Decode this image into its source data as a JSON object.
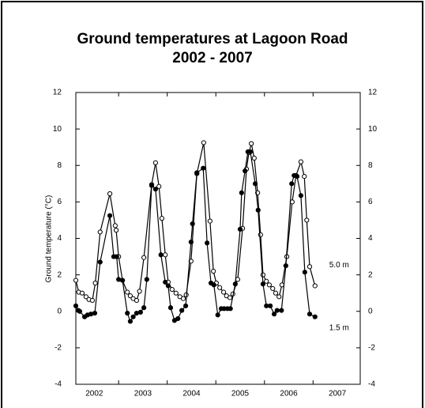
{
  "chart_data": {
    "type": "line",
    "title": [
      "Ground temperatures at Lagoon Road",
      "2002 - 2007"
    ],
    "y_label": "Ground temperature (°C)",
    "xlim": [
      2002.12,
      2007.97
    ],
    "xticks": [
      {
        "value": 2002.5,
        "label": "2002"
      },
      {
        "value": 2003.5,
        "label": "2003"
      },
      {
        "value": 2004.5,
        "label": "2004"
      },
      {
        "value": 2005.5,
        "label": "2005"
      },
      {
        "value": 2006.5,
        "label": "2006"
      },
      {
        "value": 2007.5,
        "label": "2007"
      }
    ],
    "xticks_minor": [
      2003,
      2004,
      2005,
      2006,
      2007
    ],
    "ylim": [
      -4,
      12
    ],
    "yticks": [
      -4,
      -2,
      0,
      2,
      4,
      6,
      8,
      10,
      12
    ],
    "y2lim": [
      -4,
      12
    ],
    "y2ticks": [
      -4,
      -2,
      0,
      2,
      4,
      6,
      8,
      10,
      12
    ],
    "series": [
      {
        "name": "5.0 m",
        "color": "#000000",
        "marker": "open",
        "x": [
          2002.12,
          2002.18,
          2002.25,
          2002.33,
          2002.39,
          2002.46,
          2002.52,
          2002.62,
          2002.82,
          2002.93,
          2002.95,
          2003.0,
          2003.08,
          2003.18,
          2003.24,
          2003.3,
          2003.37,
          2003.43,
          2003.52,
          2003.68,
          2003.76,
          2003.83,
          2003.89,
          2003.96,
          2004.02,
          2004.1,
          2004.18,
          2004.26,
          2004.33,
          2004.39,
          2004.49,
          2004.61,
          2004.75,
          2004.88,
          2004.95,
          2005.01,
          2005.08,
          2005.16,
          2005.22,
          2005.29,
          2005.35,
          2005.45,
          2005.55,
          2005.63,
          2005.68,
          2005.73,
          2005.79,
          2005.86,
          2005.92,
          2005.97,
          2006.04,
          2006.1,
          2006.17,
          2006.23,
          2006.3,
          2006.36,
          2006.46,
          2006.57,
          2006.65,
          2006.75,
          2006.82,
          2006.87,
          2006.93,
          2007.04
        ],
        "values": [
          1.7,
          1.05,
          1.0,
          0.8,
          0.65,
          0.6,
          1.55,
          4.35,
          6.45,
          4.7,
          4.45,
          3.0,
          1.7,
          1.05,
          0.85,
          0.7,
          0.6,
          1.1,
          2.95,
          6.95,
          8.15,
          6.85,
          5.1,
          3.1,
          1.6,
          1.2,
          1.0,
          0.8,
          0.7,
          0.9,
          2.75,
          7.55,
          9.25,
          4.95,
          2.2,
          1.55,
          1.3,
          1.05,
          0.85,
          0.75,
          0.95,
          1.75,
          4.55,
          7.8,
          8.7,
          9.2,
          8.4,
          6.5,
          4.2,
          2.0,
          1.65,
          1.45,
          1.25,
          1.0,
          0.8,
          1.45,
          3.0,
          6.0,
          7.45,
          8.2,
          7.4,
          5.0,
          2.45,
          1.4
        ]
      },
      {
        "name": "1.5 m",
        "color": "#000000",
        "marker": "filled",
        "x": [
          2002.12,
          2002.17,
          2002.2,
          2002.3,
          2002.36,
          2002.43,
          2002.51,
          2002.62,
          2002.82,
          2002.9,
          2002.96,
          2003.0,
          2003.08,
          2003.18,
          2003.24,
          2003.3,
          2003.37,
          2003.45,
          2003.52,
          2003.58,
          2003.68,
          2003.76,
          2003.87,
          2003.96,
          2004.02,
          2004.07,
          2004.15,
          2004.22,
          2004.3,
          2004.38,
          2004.49,
          2004.52,
          2004.61,
          2004.74,
          2004.82,
          2004.9,
          2004.96,
          2005.04,
          2005.11,
          2005.17,
          2005.24,
          2005.3,
          2005.4,
          2005.5,
          2005.53,
          2005.6,
          2005.66,
          2005.71,
          2005.81,
          2005.87,
          2005.97,
          2006.04,
          2006.12,
          2006.2,
          2006.26,
          2006.35,
          2006.44,
          2006.56,
          2006.61,
          2006.67,
          2006.75,
          2006.83,
          2006.93,
          2007.04
        ],
        "values": [
          0.3,
          0.05,
          0.0,
          -0.3,
          -0.2,
          -0.15,
          -0.1,
          2.7,
          5.25,
          3.0,
          3.0,
          1.75,
          1.7,
          -0.1,
          -0.55,
          -0.3,
          -0.1,
          -0.05,
          0.2,
          1.75,
          6.9,
          6.7,
          3.1,
          1.6,
          1.4,
          0.2,
          -0.5,
          -0.4,
          0.05,
          0.3,
          3.8,
          4.8,
          7.6,
          7.85,
          3.75,
          1.55,
          1.45,
          -0.2,
          0.15,
          0.15,
          0.15,
          0.15,
          1.5,
          4.5,
          6.5,
          7.7,
          8.75,
          8.75,
          7.0,
          5.55,
          1.5,
          0.3,
          0.3,
          -0.15,
          0.05,
          0.05,
          2.5,
          7.0,
          7.45,
          7.4,
          6.35,
          2.15,
          -0.15,
          -0.3
        ]
      }
    ]
  }
}
